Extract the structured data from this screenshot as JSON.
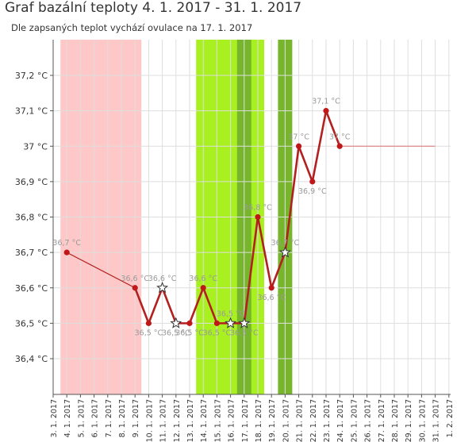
{
  "header": {
    "title": "Graf bazální teploty 4. 1. 2017 - 31. 1. 2017",
    "subtitle": "Dle zapsaných teplot vychází ovulace na 17. 1. 2017"
  },
  "colors": {
    "period": "#ffc8c8",
    "fertile": "#a8f01f",
    "fertile_dark": "#77b62c",
    "line": "#b22020",
    "marker": "#c01818",
    "ovulation_line": "#e08888"
  },
  "chart_data": {
    "type": "line",
    "title": "Graf bazální teploty 4. 1. 2017 - 31. 1. 2017",
    "ylim": [
      36.3,
      37.4
    ],
    "yticks": [
      "36,4 °C",
      "36,5 °C",
      "36,6 °C",
      "36,7 °C",
      "36,8 °C",
      "36,9 °C",
      "37 °C",
      "37,1 °C",
      "37,2 °C"
    ],
    "ytick_values": [
      36.4,
      36.5,
      36.6,
      36.7,
      36.8,
      36.9,
      37.0,
      37.1,
      37.2
    ],
    "x": [
      "3. 1. 2017",
      "4. 1. 2017",
      "5. 1. 2017",
      "6. 1. 2017",
      "7. 1. 2017",
      "8. 1. 2017",
      "9. 1. 2017",
      "10. 1. 2017",
      "11. 1. 2017",
      "12. 1. 2017",
      "13. 1. 2017",
      "14. 1. 2017",
      "15. 1. 2017",
      "16. 1. 2017",
      "17. 1. 2017",
      "18. 1. 2017",
      "19. 1. 2017",
      "20. 1. 2017",
      "21. 1. 2017",
      "22. 1. 2017",
      "23. 1. 2017",
      "24. 1. 2017",
      "25. 1. 2017",
      "26. 1. 2017",
      "27. 1. 2017",
      "28. 1. 2017",
      "29. 1. 2017",
      "30. 1. 2017",
      "31. 1. 2017",
      "1. 2. 2017"
    ],
    "grid": true,
    "period_days": [
      4,
      9
    ],
    "fertile_days": [
      14,
      18
    ],
    "fertile_dark_days": [
      [
        17,
        17
      ],
      [
        20,
        20
      ]
    ],
    "points": [
      {
        "day": 4,
        "value": 36.7,
        "label": "36,7 °C",
        "marker": "dot"
      },
      {
        "day": 9,
        "value": 36.6,
        "label": "36,6 °C",
        "marker": "dot"
      },
      {
        "day": 10,
        "value": 36.5,
        "label": "36,5 °C",
        "marker": "dot"
      },
      {
        "day": 11,
        "value": 36.6,
        "label": "36,6 °C",
        "marker": "star"
      },
      {
        "day": 12,
        "value": 36.5,
        "label": "36,5 °C",
        "marker": "star"
      },
      {
        "day": 13,
        "value": 36.5,
        "label": "36,5 °C",
        "marker": "dot"
      },
      {
        "day": 14,
        "value": 36.6,
        "label": "36,6 °C",
        "marker": "dot"
      },
      {
        "day": 15,
        "value": 36.5,
        "label": "36,5 °C",
        "marker": "dot"
      },
      {
        "day": 16,
        "value": 36.5,
        "label": "36,5 °C",
        "marker": "star"
      },
      {
        "day": 17,
        "value": 36.5,
        "label": "36,5 °C",
        "marker": "star"
      },
      {
        "day": 18,
        "value": 36.8,
        "label": "36,8 °C",
        "marker": "dot"
      },
      {
        "day": 19,
        "value": 36.6,
        "label": "36,6 °C",
        "marker": "dot"
      },
      {
        "day": 20,
        "value": 36.7,
        "label": "36,7 °C",
        "marker": "star"
      },
      {
        "day": 21,
        "value": 37.0,
        "label": "37 °C",
        "marker": "dot"
      },
      {
        "day": 22,
        "value": 36.9,
        "label": "36,9 °C",
        "marker": "dot"
      },
      {
        "day": 23,
        "value": 37.1,
        "label": "37,1 °C",
        "marker": "dot"
      },
      {
        "day": 24,
        "value": 37.0,
        "label": "37 °C",
        "marker": "dot"
      }
    ],
    "thin_segments": [
      [
        4,
        9
      ]
    ],
    "baseline": {
      "value": 37.0,
      "from_day": 24,
      "to_day": 31
    }
  }
}
